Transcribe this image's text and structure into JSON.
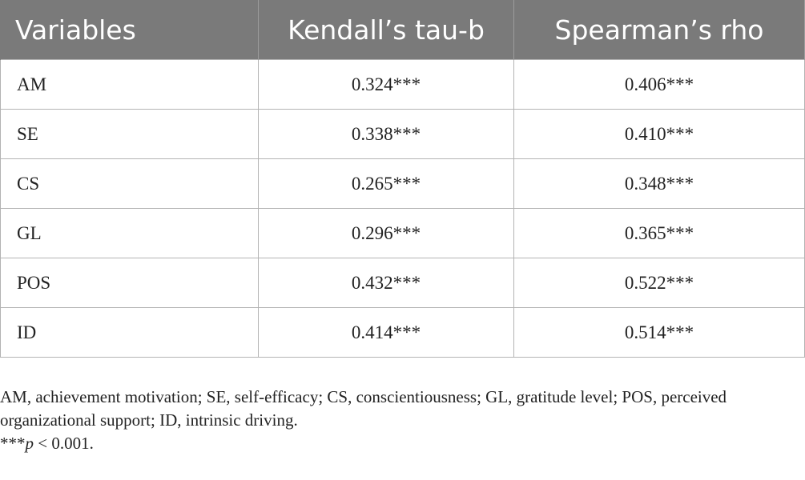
{
  "table": {
    "headers": [
      "Variables",
      "Kendall’s tau-b",
      "Spearman’s rho"
    ],
    "rows": [
      {
        "variable": "AM",
        "kendall": "0.324***",
        "spearman": "0.406***"
      },
      {
        "variable": "SE",
        "kendall": "0.338***",
        "spearman": "0.410***"
      },
      {
        "variable": "CS",
        "kendall": "0.265***",
        "spearman": "0.348***"
      },
      {
        "variable": "GL",
        "kendall": "0.296***",
        "spearman": "0.365***"
      },
      {
        "variable": "POS",
        "kendall": "0.432***",
        "spearman": "0.522***"
      },
      {
        "variable": "ID",
        "kendall": "0.414***",
        "spearman": "0.514***"
      }
    ]
  },
  "notes": {
    "abbreviations": "AM, achievement motivation; SE, self-efficacy; CS, conscientiousness; GL, gratitude level; POS, perceived organizational support; ID, intrinsic driving.",
    "significance_prefix": "***",
    "significance_p": "p",
    "significance_rest": " < 0.001."
  },
  "colors": {
    "header_bg": "#7a7a7a",
    "header_text": "#ffffff",
    "border": "#b3b3b3",
    "body_text": "#222222"
  }
}
